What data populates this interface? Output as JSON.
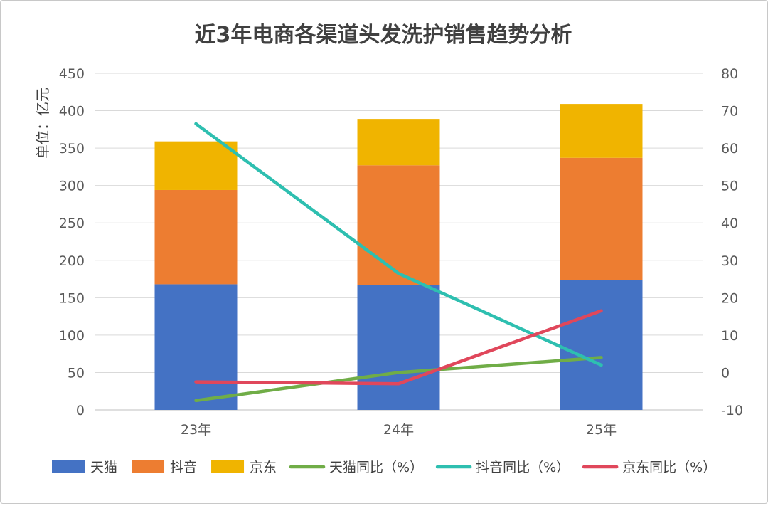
{
  "chart_data": {
    "type": "bar",
    "title": "近3年电商各渠道头发洗护销售趋势分析",
    "ylabel": "单位：亿元",
    "categories": [
      "23年",
      "24年",
      "25年"
    ],
    "stacked": true,
    "ylim": [
      0,
      450
    ],
    "y2lim": [
      -10,
      80
    ],
    "y_ticks": [
      0,
      50,
      100,
      150,
      200,
      250,
      300,
      350,
      400,
      450
    ],
    "y2_ticks": [
      -10,
      0,
      10,
      20,
      30,
      40,
      50,
      60,
      70,
      80
    ],
    "grid": true,
    "legend_position": "bottom",
    "bar_series": [
      {
        "name": "天猫",
        "color": "#4472C4",
        "values": [
          168,
          167,
          174
        ]
      },
      {
        "name": "抖音",
        "color": "#ED7D31",
        "values": [
          126,
          160,
          163
        ]
      },
      {
        "name": "京东",
        "color": "#F0B400",
        "values": [
          65,
          62,
          72
        ]
      }
    ],
    "line_series": [
      {
        "name": "天猫同比（%）",
        "color": "#70AD47",
        "axis": "right",
        "values": [
          -7.5,
          0,
          4
        ]
      },
      {
        "name": "抖音同比（%）",
        "color": "#2EBFB0",
        "axis": "right",
        "values": [
          66.5,
          26.5,
          2
        ]
      },
      {
        "name": "京东同比（%）",
        "color": "#E0475B",
        "axis": "right",
        "values": [
          -2.5,
          -3,
          16.5
        ]
      }
    ]
  }
}
